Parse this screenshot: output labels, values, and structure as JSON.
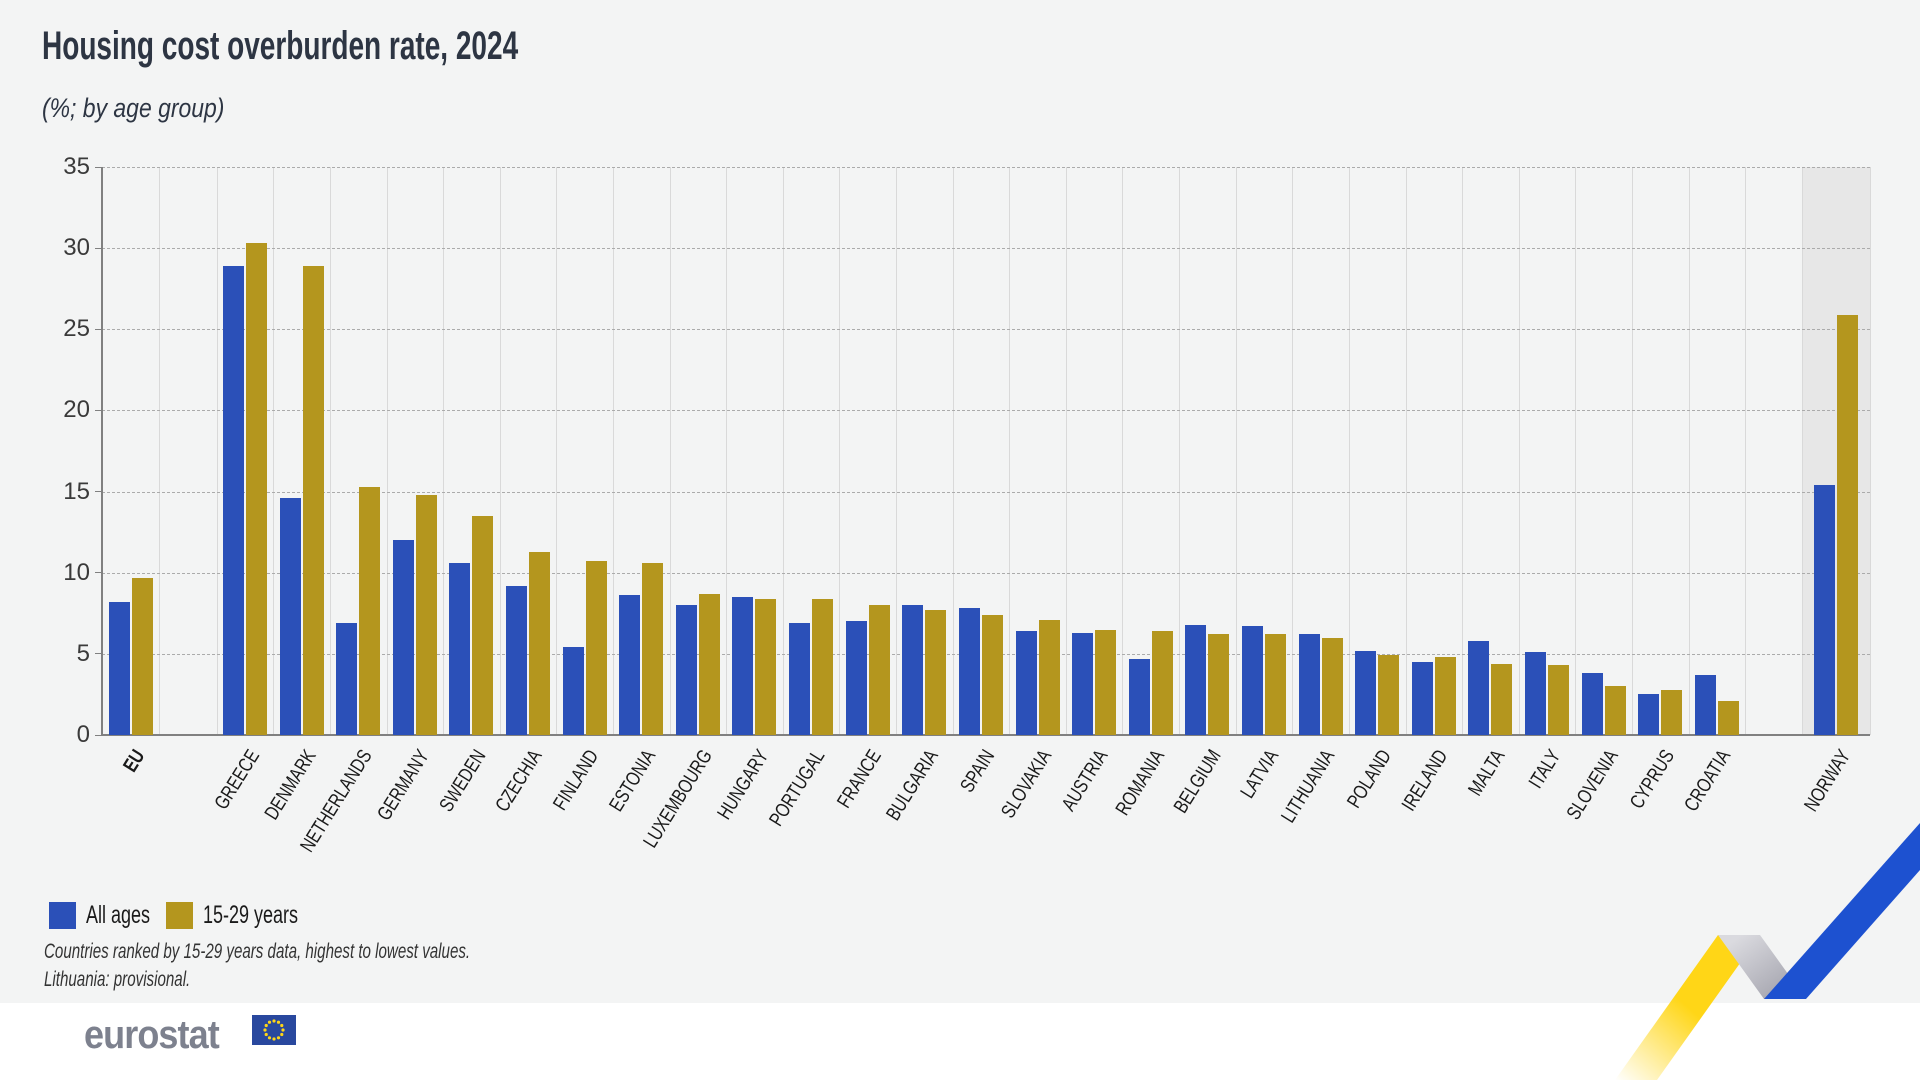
{
  "header": {
    "title": "Housing cost overburden rate, 2024",
    "subtitle": "(%; by age group)"
  },
  "chart_data": {
    "type": "bar",
    "title": "Housing cost overburden rate, 2024",
    "subtitle": "(%; by age group)",
    "ylim": [
      0,
      35
    ],
    "yticks": [
      0,
      5,
      10,
      15,
      20,
      25,
      30,
      35
    ],
    "grid": "horizontal-dashed",
    "legend_position": "bottom-left",
    "categories": [
      "EU",
      "GREECE",
      "DENMARK",
      "NETHERLANDS",
      "GERMANY",
      "SWEDEN",
      "CZECHIA",
      "FINLAND",
      "ESTONIA",
      "LUXEMBOURG",
      "HUNGARY",
      "PORTUGAL",
      "FRANCE",
      "BULGARIA",
      "SPAIN",
      "SLOVAKIA",
      "AUSTRIA",
      "ROMANIA",
      "BELGIUM",
      "LATVIA",
      "LITHUANIA",
      "POLAND",
      "IRELAND",
      "MALTA",
      "ITALY",
      "SLOVENIA",
      "CYPRUS",
      "CROATIA",
      "NORWAY"
    ],
    "separator_gaps_after": [
      "EU",
      "CROATIA"
    ],
    "highlight_band_category": "NORWAY",
    "series": [
      {
        "name": "All ages",
        "color": "#2B50B8",
        "values": [
          8.2,
          28.9,
          14.6,
          6.9,
          12.0,
          10.6,
          9.2,
          5.4,
          8.6,
          8.0,
          8.5,
          6.9,
          7.0,
          8.0,
          7.8,
          6.4,
          6.3,
          4.7,
          6.8,
          6.7,
          6.2,
          5.2,
          4.5,
          5.8,
          5.1,
          3.8,
          2.5,
          3.7,
          15.4
        ]
      },
      {
        "name": "15-29 years",
        "color": "#B4961E",
        "values": [
          9.7,
          30.3,
          28.9,
          15.3,
          14.8,
          13.5,
          11.3,
          10.7,
          10.6,
          8.7,
          8.4,
          8.4,
          8.0,
          7.7,
          7.4,
          7.1,
          6.5,
          6.4,
          6.2,
          6.2,
          6.0,
          4.9,
          4.8,
          4.4,
          4.3,
          3.0,
          2.8,
          2.1,
          25.9
        ]
      }
    ]
  },
  "notes": {
    "ranking": "Countries ranked by 15-29 years data, highest to lowest values.",
    "provisional": "Lithuania: provisional."
  },
  "footer": {
    "brand": "eurostat",
    "flag_blue": "#29489E",
    "star_yellow": "#FFD617"
  },
  "decor": {
    "ribbon_yellow": "#FFD617",
    "ribbon_gray_light": "#DADADF",
    "ribbon_gray_dark": "#A2A2AC",
    "ribbon_blue": "#1D51D0",
    "highlight_band_color": "#E7E7E7"
  }
}
